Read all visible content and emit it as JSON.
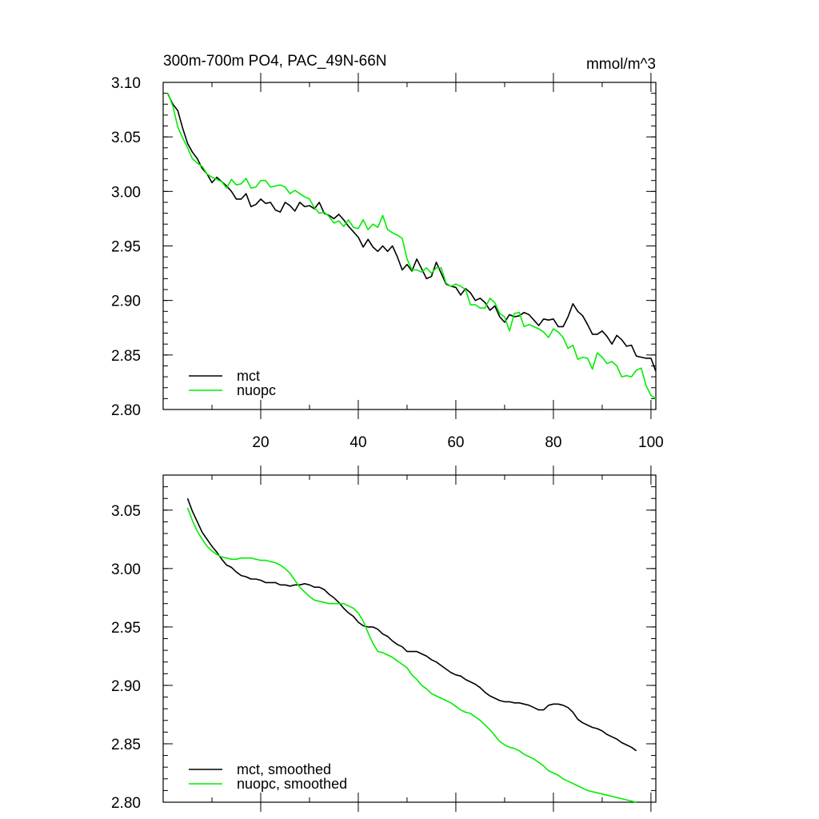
{
  "chart_data": [
    {
      "type": "line",
      "title": "300m-700m PO4, PAC_49N-66N",
      "units": "mmol/m^3",
      "xlim": [
        0,
        101
      ],
      "ylim": [
        2.8,
        3.1
      ],
      "yticks": [
        "2.80",
        "2.85",
        "2.90",
        "2.95",
        "3.00",
        "3.05",
        "3.10"
      ],
      "xticks": [
        "20",
        "40",
        "60",
        "80",
        "100"
      ],
      "legend": "bottom-left",
      "x": [
        1,
        2,
        3,
        4,
        5,
        6,
        7,
        8,
        9,
        10,
        11,
        12,
        13,
        14,
        15,
        16,
        17,
        18,
        19,
        20,
        21,
        22,
        23,
        24,
        25,
        26,
        27,
        28,
        29,
        30,
        31,
        32,
        33,
        34,
        35,
        36,
        37,
        38,
        39,
        40,
        41,
        42,
        43,
        44,
        45,
        46,
        47,
        48,
        49,
        50,
        51,
        52,
        53,
        54,
        55,
        56,
        57,
        58,
        59,
        60,
        61,
        62,
        63,
        64,
        65,
        66,
        67,
        68,
        69,
        70,
        71,
        72,
        73,
        74,
        75,
        76,
        77,
        78,
        79,
        80,
        81,
        82,
        83,
        84,
        85,
        86,
        87,
        88,
        89,
        90,
        91,
        92,
        93,
        94,
        95,
        96,
        97,
        98,
        99,
        100,
        101
      ],
      "series": [
        {
          "name": "mct",
          "color": "#000000",
          "values": [
            3.089,
            3.08,
            3.074,
            3.058,
            3.044,
            3.036,
            3.03,
            3.021,
            3.016,
            3.008,
            3.013,
            3.009,
            3.005,
            3.0,
            2.993,
            2.993,
            2.998,
            2.986,
            2.988,
            2.993,
            2.989,
            2.99,
            2.983,
            2.981,
            2.99,
            2.987,
            2.982,
            2.99,
            2.986,
            2.987,
            2.984,
            2.99,
            2.98,
            2.978,
            2.975,
            2.979,
            2.974,
            2.968,
            2.963,
            2.958,
            2.949,
            2.956,
            2.949,
            2.945,
            2.95,
            2.945,
            2.95,
            2.94,
            2.928,
            2.933,
            2.927,
            2.938,
            2.929,
            2.92,
            2.922,
            2.935,
            2.925,
            2.915,
            2.913,
            2.912,
            2.905,
            2.911,
            2.907,
            2.9,
            2.902,
            2.898,
            2.891,
            2.895,
            2.885,
            2.88,
            2.887,
            2.885,
            2.886,
            2.889,
            2.887,
            2.882,
            2.877,
            2.883,
            2.882,
            2.883,
            2.876,
            2.876,
            2.885,
            2.897,
            2.89,
            2.886,
            2.878,
            2.869,
            2.869,
            2.872,
            2.867,
            2.86,
            2.868,
            2.864,
            2.858,
            2.859,
            2.849,
            2.848,
            2.847,
            2.847,
            2.835
          ]
        },
        {
          "name": "nuopc",
          "color": "#00ee00",
          "values": [
            3.09,
            3.078,
            3.059,
            3.049,
            3.04,
            3.03,
            3.026,
            3.023,
            3.016,
            3.013,
            3.011,
            3.009,
            3.003,
            3.011,
            3.006,
            3.007,
            3.012,
            3.003,
            3.004,
            3.01,
            3.01,
            3.004,
            3.005,
            3.006,
            3.004,
            2.998,
            3.001,
            2.998,
            2.995,
            2.993,
            2.985,
            2.98,
            2.981,
            2.977,
            2.971,
            2.973,
            2.968,
            2.974,
            2.967,
            2.966,
            2.974,
            2.965,
            2.97,
            2.967,
            2.978,
            2.965,
            2.962,
            2.96,
            2.957,
            2.938,
            2.928,
            2.928,
            2.926,
            2.93,
            2.925,
            2.93,
            2.93,
            2.916,
            2.913,
            2.915,
            2.913,
            2.91,
            2.896,
            2.896,
            2.893,
            2.893,
            2.902,
            2.898,
            2.888,
            2.885,
            2.872,
            2.888,
            2.889,
            2.876,
            2.878,
            2.876,
            2.874,
            2.871,
            2.866,
            2.874,
            2.871,
            2.866,
            2.856,
            2.859,
            2.846,
            2.848,
            2.847,
            2.837,
            2.852,
            2.848,
            2.842,
            2.844,
            2.84,
            2.83,
            2.831,
            2.83,
            2.836,
            2.838,
            2.822,
            2.813,
            2.81
          ]
        }
      ]
    },
    {
      "type": "line",
      "title": "",
      "units": "",
      "xlim": [
        0,
        101
      ],
      "ylim": [
        2.8,
        3.08
      ],
      "yticks": [
        "2.80",
        "2.85",
        "2.90",
        "2.95",
        "3.00",
        "3.05"
      ],
      "xticks": [],
      "legend": "bottom-left",
      "x": [
        5,
        6,
        7,
        8,
        9,
        10,
        11,
        12,
        13,
        14,
        15,
        16,
        17,
        18,
        19,
        20,
        21,
        22,
        23,
        24,
        25,
        26,
        27,
        28,
        29,
        30,
        31,
        32,
        33,
        34,
        35,
        36,
        37,
        38,
        39,
        40,
        41,
        42,
        43,
        44,
        45,
        46,
        47,
        48,
        49,
        50,
        51,
        52,
        53,
        54,
        55,
        56,
        57,
        58,
        59,
        60,
        61,
        62,
        63,
        64,
        65,
        66,
        67,
        68,
        69,
        70,
        71,
        72,
        73,
        74,
        75,
        76,
        77,
        78,
        79,
        80,
        81,
        82,
        83,
        84,
        85,
        86,
        87,
        88,
        89,
        90,
        91,
        92,
        93,
        94,
        95,
        96,
        97
      ],
      "series": [
        {
          "name": "mct, smoothed",
          "color": "#000000",
          "values": [
            3.06,
            3.049,
            3.04,
            3.031,
            3.025,
            3.019,
            3.014,
            3.008,
            3.003,
            3.001,
            2.997,
            2.994,
            2.993,
            2.991,
            2.991,
            2.99,
            2.988,
            2.988,
            2.988,
            2.986,
            2.986,
            2.985,
            2.986,
            2.986,
            2.987,
            2.986,
            2.984,
            2.984,
            2.982,
            2.978,
            2.975,
            2.971,
            2.966,
            2.962,
            2.959,
            2.954,
            2.951,
            2.95,
            2.95,
            2.948,
            2.944,
            2.942,
            2.938,
            2.935,
            2.933,
            2.929,
            2.929,
            2.929,
            2.927,
            2.925,
            2.922,
            2.92,
            2.917,
            2.914,
            2.911,
            2.909,
            2.908,
            2.905,
            2.903,
            2.901,
            2.898,
            2.894,
            2.891,
            2.889,
            2.887,
            2.886,
            2.886,
            2.885,
            2.885,
            2.884,
            2.883,
            2.881,
            2.879,
            2.879,
            2.883,
            2.884,
            2.884,
            2.883,
            2.881,
            2.877,
            2.871,
            2.868,
            2.866,
            2.864,
            2.863,
            2.861,
            2.858,
            2.856,
            2.854,
            2.851,
            2.849,
            2.847,
            2.844
          ]
        },
        {
          "name": "nuopc, smoothed",
          "color": "#00ee00",
          "values": [
            3.052,
            3.041,
            3.032,
            3.025,
            3.019,
            3.015,
            3.012,
            3.01,
            3.009,
            3.008,
            3.008,
            3.009,
            3.009,
            3.009,
            3.008,
            3.007,
            3.007,
            3.006,
            3.005,
            3.003,
            3.0,
            2.996,
            2.99,
            2.984,
            2.98,
            2.976,
            2.973,
            2.972,
            2.971,
            2.97,
            2.97,
            2.97,
            2.97,
            2.968,
            2.966,
            2.962,
            2.955,
            2.945,
            2.936,
            2.929,
            2.928,
            2.926,
            2.924,
            2.921,
            2.918,
            2.915,
            2.909,
            2.905,
            2.9,
            2.897,
            2.893,
            2.891,
            2.889,
            2.887,
            2.885,
            2.882,
            2.879,
            2.877,
            2.876,
            2.873,
            2.87,
            2.866,
            2.862,
            2.857,
            2.852,
            2.849,
            2.847,
            2.846,
            2.844,
            2.841,
            2.839,
            2.837,
            2.834,
            2.831,
            2.827,
            2.825,
            2.823,
            2.82,
            2.818,
            2.816,
            2.814,
            2.812,
            2.81,
            2.809,
            2.808,
            2.807,
            2.806,
            2.805,
            2.804,
            2.803,
            2.802,
            2.801,
            2.8
          ]
        }
      ]
    }
  ]
}
